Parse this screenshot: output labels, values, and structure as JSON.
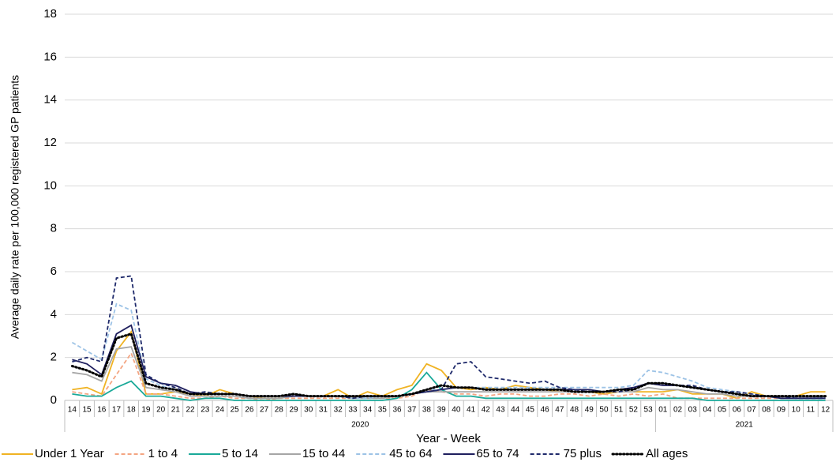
{
  "chart_data": {
    "type": "line",
    "y_label": "Average daily rate per 100,000 registered GP patients",
    "x_label": "Year - Week",
    "categories": [
      "14",
      "15",
      "16",
      "17",
      "18",
      "19",
      "20",
      "21",
      "22",
      "23",
      "24",
      "25",
      "26",
      "27",
      "28",
      "29",
      "30",
      "31",
      "32",
      "33",
      "34",
      "35",
      "36",
      "37",
      "38",
      "39",
      "40",
      "41",
      "42",
      "43",
      "44",
      "45",
      "46",
      "47",
      "48",
      "49",
      "50",
      "51",
      "52",
      "53",
      "01",
      "02",
      "03",
      "04",
      "05",
      "06",
      "07",
      "08",
      "09",
      "10",
      "11",
      "12"
    ],
    "groups": [
      {
        "label": "2020",
        "count": 40
      },
      {
        "label": "2021",
        "count": 12
      }
    ],
    "ylim": [
      0,
      18
    ],
    "yticks": [
      0,
      2,
      4,
      6,
      8,
      10,
      12,
      14,
      16,
      18
    ],
    "grid": true,
    "legend": "bottom",
    "series": [
      {
        "name": "Under 1 Year",
        "color": "#f0b323",
        "dash": "solid",
        "values": [
          0.5,
          0.6,
          0.3,
          2.3,
          3.2,
          0.3,
          0.3,
          0.4,
          0.3,
          0.2,
          0.5,
          0.3,
          0.2,
          0.1,
          0.1,
          0.2,
          0.2,
          0.2,
          0.5,
          0.1,
          0.4,
          0.2,
          0.5,
          0.7,
          1.7,
          1.4,
          0.6,
          0.5,
          0.6,
          0.5,
          0.7,
          0.6,
          0.5,
          0.4,
          0.4,
          0.4,
          0.3,
          0.4,
          0.4,
          0.4,
          0.4,
          0.5,
          0.3,
          0.3,
          0.3,
          0.1,
          0.4,
          0.2,
          0.2,
          0.2,
          0.4,
          0.4
        ]
      },
      {
        "name": "1 to 4",
        "color": "#f4a582",
        "dash": "dashed",
        "values": [
          0.4,
          0.3,
          0.2,
          1.2,
          2.2,
          0.3,
          0.3,
          0.2,
          0.1,
          0.1,
          0.2,
          0.1,
          0.1,
          0.0,
          0.1,
          0.1,
          0.1,
          0.1,
          0.1,
          0.1,
          0.1,
          0.1,
          0.1,
          0.2,
          0.5,
          0.4,
          0.3,
          0.3,
          0.2,
          0.3,
          0.3,
          0.2,
          0.2,
          0.3,
          0.3,
          0.2,
          0.3,
          0.2,
          0.3,
          0.2,
          0.3,
          0.1,
          0.1,
          0.1,
          0.1,
          0.1,
          0.1,
          0.1,
          0.1,
          0.1,
          0.1,
          0.1
        ]
      },
      {
        "name": "5 to 14",
        "color": "#1aa999",
        "dash": "solid",
        "values": [
          0.3,
          0.2,
          0.2,
          0.6,
          0.9,
          0.2,
          0.2,
          0.1,
          0.0,
          0.1,
          0.1,
          0.0,
          0.0,
          0.0,
          0.0,
          0.0,
          0.0,
          0.0,
          0.0,
          0.0,
          0.0,
          0.0,
          0.1,
          0.5,
          1.3,
          0.5,
          0.2,
          0.2,
          0.1,
          0.1,
          0.1,
          0.1,
          0.1,
          0.1,
          0.1,
          0.1,
          0.1,
          0.1,
          0.1,
          0.1,
          0.1,
          0.1,
          0.1,
          0.0,
          0.0,
          0.0,
          0.0,
          0.0,
          0.0,
          0.0,
          0.0,
          0.0
        ]
      },
      {
        "name": "15 to 44",
        "color": "#a6a6a6",
        "dash": "solid",
        "values": [
          1.3,
          1.2,
          0.9,
          2.4,
          2.5,
          0.6,
          0.5,
          0.4,
          0.2,
          0.2,
          0.2,
          0.2,
          0.1,
          0.1,
          0.1,
          0.2,
          0.2,
          0.2,
          0.2,
          0.1,
          0.1,
          0.1,
          0.2,
          0.3,
          0.4,
          0.4,
          0.4,
          0.4,
          0.4,
          0.4,
          0.4,
          0.4,
          0.4,
          0.4,
          0.4,
          0.4,
          0.4,
          0.4,
          0.4,
          0.6,
          0.5,
          0.5,
          0.4,
          0.3,
          0.3,
          0.2,
          0.2,
          0.2,
          0.1,
          0.1,
          0.1,
          0.1
        ]
      },
      {
        "name": "45 to 64",
        "color": "#9dc3e6",
        "dash": "dashed",
        "values": [
          2.7,
          2.3,
          1.9,
          4.5,
          4.2,
          1.0,
          0.7,
          0.5,
          0.3,
          0.3,
          0.3,
          0.3,
          0.2,
          0.2,
          0.2,
          0.2,
          0.2,
          0.2,
          0.2,
          0.1,
          0.1,
          0.2,
          0.2,
          0.3,
          0.5,
          0.5,
          0.6,
          0.6,
          0.6,
          0.6,
          0.6,
          0.6,
          0.6,
          0.6,
          0.6,
          0.6,
          0.6,
          0.6,
          0.7,
          1.4,
          1.3,
          1.1,
          0.9,
          0.6,
          0.5,
          0.4,
          0.3,
          0.2,
          0.2,
          0.2,
          0.2,
          0.1
        ]
      },
      {
        "name": "65 to 74",
        "color": "#1f1f5e",
        "dash": "solid",
        "values": [
          1.9,
          1.7,
          1.2,
          3.1,
          3.5,
          1.1,
          0.8,
          0.7,
          0.4,
          0.3,
          0.3,
          0.3,
          0.2,
          0.2,
          0.2,
          0.2,
          0.2,
          0.2,
          0.2,
          0.2,
          0.2,
          0.2,
          0.2,
          0.3,
          0.4,
          0.5,
          0.6,
          0.6,
          0.5,
          0.5,
          0.5,
          0.5,
          0.5,
          0.5,
          0.5,
          0.5,
          0.4,
          0.5,
          0.6,
          0.8,
          0.7,
          0.7,
          0.6,
          0.5,
          0.4,
          0.3,
          0.2,
          0.2,
          0.1,
          0.1,
          0.1,
          0.1
        ]
      },
      {
        "name": "75 plus",
        "color": "#1f2a6b",
        "dash": "dashed",
        "values": [
          1.8,
          2.0,
          1.8,
          5.7,
          5.8,
          1.2,
          0.8,
          0.6,
          0.3,
          0.4,
          0.3,
          0.3,
          0.2,
          0.2,
          0.2,
          0.3,
          0.2,
          0.2,
          0.2,
          0.1,
          0.2,
          0.2,
          0.2,
          0.3,
          0.4,
          0.5,
          1.7,
          1.8,
          1.1,
          1.0,
          0.9,
          0.8,
          0.9,
          0.6,
          0.5,
          0.4,
          0.4,
          0.4,
          0.5,
          0.8,
          0.8,
          0.7,
          0.7,
          0.5,
          0.4,
          0.4,
          0.3,
          0.2,
          0.2,
          0.1,
          0.1,
          0.1
        ]
      },
      {
        "name": "All ages",
        "color": "#000000",
        "dash": "dotted",
        "values": [
          1.6,
          1.4,
          1.1,
          2.9,
          3.1,
          0.8,
          0.6,
          0.5,
          0.3,
          0.3,
          0.3,
          0.3,
          0.2,
          0.2,
          0.2,
          0.3,
          0.2,
          0.2,
          0.2,
          0.2,
          0.2,
          0.2,
          0.2,
          0.3,
          0.5,
          0.7,
          0.6,
          0.6,
          0.5,
          0.5,
          0.5,
          0.5,
          0.5,
          0.5,
          0.4,
          0.4,
          0.4,
          0.5,
          0.5,
          0.8,
          0.8,
          0.7,
          0.6,
          0.5,
          0.4,
          0.3,
          0.2,
          0.2,
          0.2,
          0.2,
          0.2,
          0.2
        ]
      }
    ]
  }
}
